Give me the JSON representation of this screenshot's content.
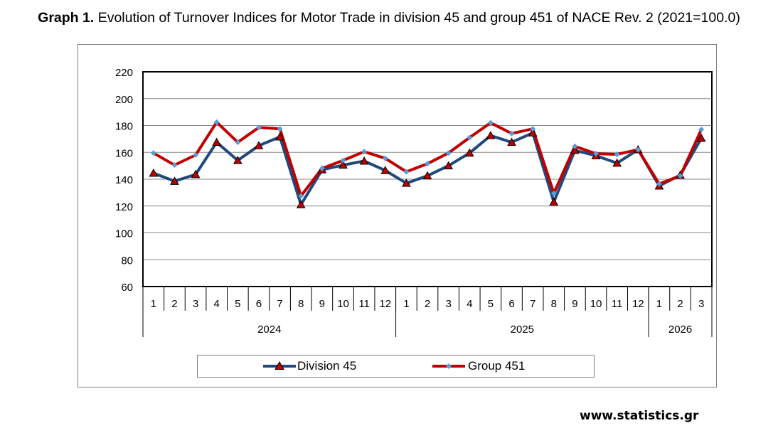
{
  "title": {
    "prefix": "Graph 1.",
    "text": " Evolution of Turnover Indices for Motor Trade in division 45 and group 451 of NACE Rev. 2 (2021=100.0)"
  },
  "chart_data": {
    "type": "line",
    "title": "Graph 1. Evolution of Turnover Indices for Motor Trade in division 45 and group 451 of NACE Rev. 2 (2021=100.0)",
    "xlabel": "",
    "ylabel": "",
    "ylim": [
      60,
      220
    ],
    "yticks": [
      60,
      80,
      100,
      120,
      140,
      160,
      180,
      200,
      220
    ],
    "grid": true,
    "legend_position": "bottom",
    "categories": [
      "1",
      "2",
      "3",
      "4",
      "5",
      "6",
      "7",
      "8",
      "9",
      "10",
      "11",
      "12",
      "1",
      "2",
      "3",
      "4",
      "5",
      "6",
      "7",
      "8",
      "9",
      "10",
      "11",
      "12",
      "1",
      "2",
      "3"
    ],
    "year_groups": [
      {
        "label": "2024",
        "count": 12
      },
      {
        "label": "2025",
        "count": 12
      },
      {
        "label": "2026",
        "count": 3
      }
    ],
    "series": [
      {
        "name": "Division 45",
        "color": "#1f497d",
        "marker": "triangle",
        "marker_color": "#c00000",
        "values": [
          144.5,
          138.5,
          143.5,
          167.5,
          154,
          165,
          171.5,
          121,
          147,
          150.5,
          153.5,
          146.5,
          137,
          142.5,
          150,
          159.5,
          172.5,
          167.5,
          174.5,
          123,
          161.5,
          157.5,
          152,
          162,
          135,
          143,
          170.5
        ]
      },
      {
        "name": "Group 451",
        "color": "#c00000",
        "marker": "diamond",
        "marker_color": "#5b9bd5",
        "values": [
          159.5,
          150.5,
          158,
          182.5,
          167.5,
          178.5,
          177.5,
          127.5,
          148,
          154,
          160.5,
          155.5,
          145.5,
          151.5,
          159.5,
          171,
          182,
          174,
          177.5,
          129.5,
          164.5,
          159,
          158.5,
          162,
          136.5,
          142.5,
          177
        ]
      }
    ]
  },
  "footer": "www.statistics.gr"
}
